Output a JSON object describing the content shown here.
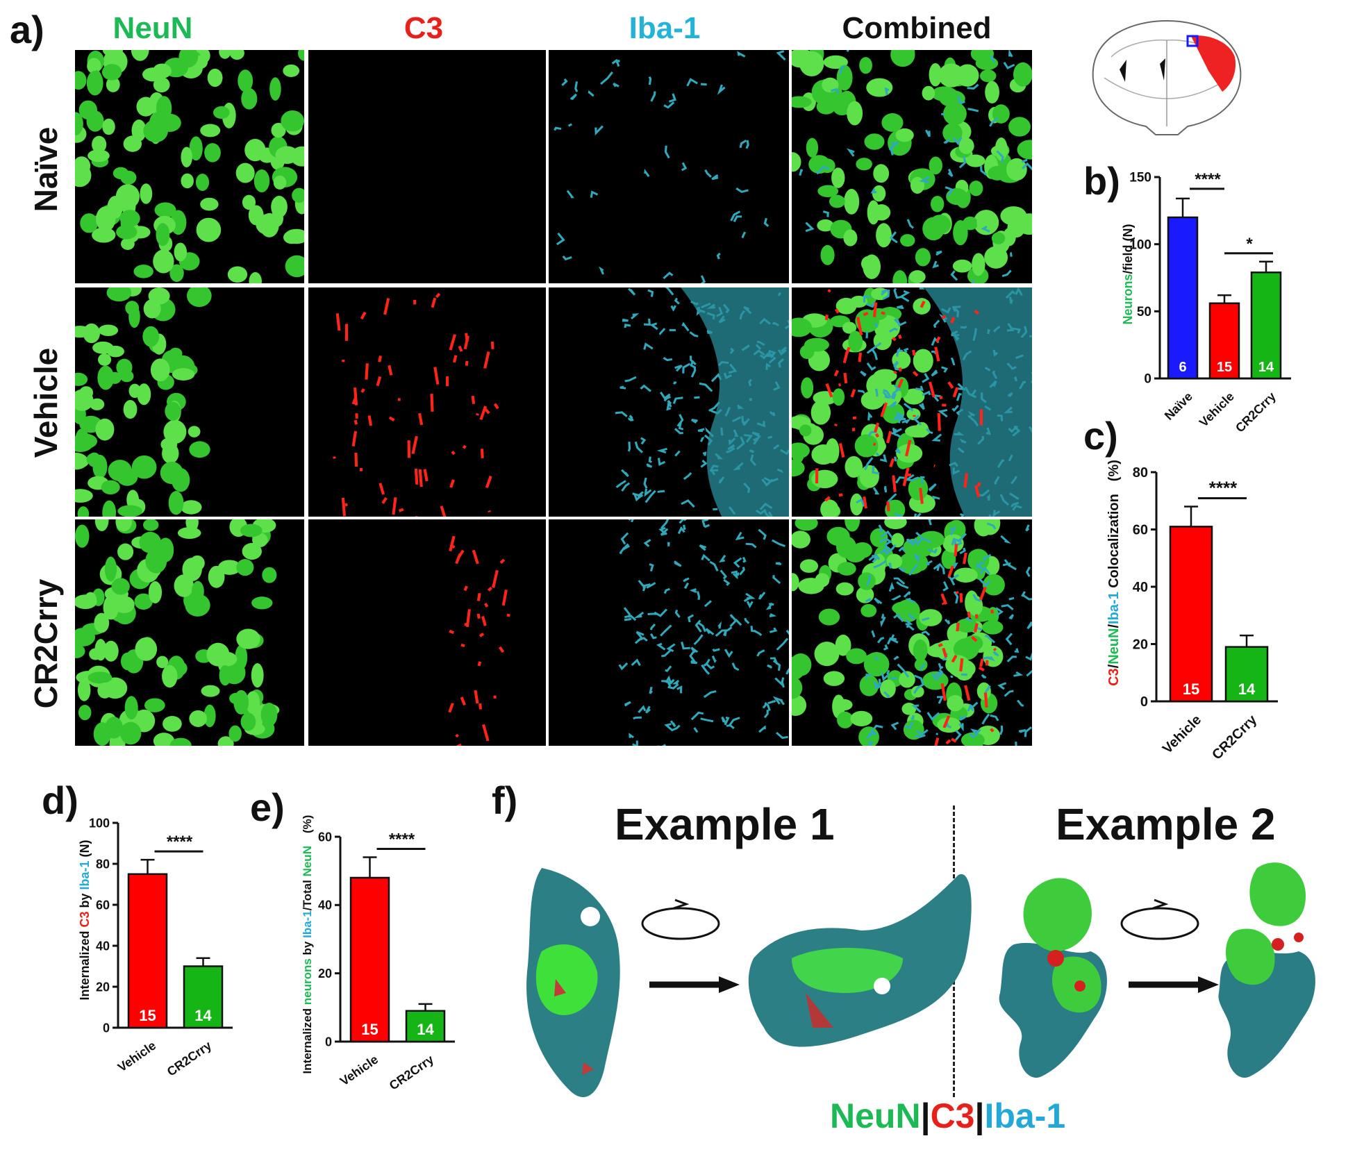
{
  "panel_letters": {
    "a": "a)",
    "b": "b)",
    "c": "c)",
    "d": "d)",
    "e": "e)",
    "f": "f)"
  },
  "column_headers": {
    "neun": {
      "text": "NeuN",
      "color": "#1db954"
    },
    "c3": {
      "text": "C3",
      "color": "#e8201a"
    },
    "iba1": {
      "text": "Iba-1",
      "color": "#23b3d8"
    },
    "combined": {
      "text": "Combined",
      "color": "#111111"
    }
  },
  "row_labels": {
    "naive": "Naïve",
    "vehicle": "Vehicle",
    "cr2crry": "CR2Crry"
  },
  "colors": {
    "neun_green": "#2ecc40",
    "c3_red": "#ff2418",
    "iba1_cyan": "#2aa7b8",
    "bar_blue": "#1a1aff",
    "bar_red": "#ff0000",
    "bar_green": "#15b515"
  },
  "chart_data": [
    {
      "panel": "b",
      "type": "bar",
      "categories": [
        "Naïve",
        "Vehicle",
        "CR2Crry"
      ],
      "values": [
        120,
        56,
        79
      ],
      "errors": [
        14,
        6,
        8
      ],
      "n_labels": [
        "6",
        "15",
        "14"
      ],
      "colors": [
        "#1a1aff",
        "#ff0000",
        "#15b515"
      ],
      "ylabel_parts": [
        {
          "text": "Neurons",
          "color": "#1db954"
        },
        {
          "text": "/field (N)",
          "color": "#111111"
        }
      ],
      "ylim": [
        0,
        150
      ],
      "yticks": [
        "0",
        "50",
        "100",
        "150"
      ],
      "significance": [
        {
          "label": "****",
          "from": 0,
          "to": 1
        },
        {
          "label": "*",
          "from": 1,
          "to": 2
        }
      ]
    },
    {
      "panel": "c",
      "type": "bar",
      "categories": [
        "Vehicle",
        "CR2Crry"
      ],
      "values": [
        61,
        19
      ],
      "errors": [
        7,
        4
      ],
      "n_labels": [
        "15",
        "14"
      ],
      "colors": [
        "#ff0000",
        "#15b515"
      ],
      "ylabel_parts": [
        {
          "text": "C3",
          "color": "#e8201a"
        },
        {
          "text": "/",
          "color": "#111111"
        },
        {
          "text": "NeuN",
          "color": "#1db954"
        },
        {
          "text": "/",
          "color": "#111111"
        },
        {
          "text": "Iba-1",
          "color": "#23a8d8"
        },
        {
          "text": " Colocalization",
          "color": "#111111"
        }
      ],
      "ylabel_unit": "(%)",
      "ylim": [
        0,
        80
      ],
      "yticks": [
        "0",
        "20",
        "40",
        "60",
        "80"
      ],
      "significance": [
        {
          "label": "****",
          "from": 0,
          "to": 1
        }
      ]
    },
    {
      "panel": "d",
      "type": "bar",
      "categories": [
        "Vehicle",
        "CR2Crry"
      ],
      "values": [
        75,
        30
      ],
      "errors": [
        7,
        4
      ],
      "n_labels": [
        "15",
        "14"
      ],
      "colors": [
        "#ff0000",
        "#15b515"
      ],
      "ylabel_parts": [
        {
          "text": "Internalized ",
          "color": "#111111"
        },
        {
          "text": "C3",
          "color": "#e8201a"
        },
        {
          "text": " by ",
          "color": "#111111"
        },
        {
          "text": "Iba-1",
          "color": "#23a8d8"
        },
        {
          "text": " (N)",
          "color": "#111111"
        }
      ],
      "ylim": [
        0,
        100
      ],
      "yticks": [
        "0",
        "20",
        "40",
        "60",
        "80",
        "100"
      ],
      "significance": [
        {
          "label": "****",
          "from": 0,
          "to": 1
        }
      ]
    },
    {
      "panel": "e",
      "type": "bar",
      "categories": [
        "Vehicle",
        "CR2Crry"
      ],
      "values": [
        48,
        9
      ],
      "errors": [
        6,
        2
      ],
      "n_labels": [
        "15",
        "14"
      ],
      "colors": [
        "#ff0000",
        "#15b515"
      ],
      "ylabel_parts": [
        {
          "text": "Internalized ",
          "color": "#111111"
        },
        {
          "text": "neurons",
          "color": "#1db954"
        },
        {
          "text": " by ",
          "color": "#111111"
        },
        {
          "text": "Iba-1",
          "color": "#23a8d8"
        },
        {
          "text": "/Total ",
          "color": "#111111"
        },
        {
          "text": "NeuN",
          "color": "#1db954"
        }
      ],
      "ylabel_unit": "(%)",
      "ylim": [
        0,
        60
      ],
      "yticks": [
        "0",
        "20",
        "40",
        "60"
      ],
      "significance": [
        {
          "label": "****",
          "from": 0,
          "to": 1
        }
      ]
    }
  ],
  "panel_f": {
    "example1": "Example 1",
    "example2": "Example 2",
    "legend": [
      {
        "text": "NeuN",
        "color": "#1db954"
      },
      {
        "text": "|",
        "color": "#111111"
      },
      {
        "text": "C3",
        "color": "#e8201a"
      },
      {
        "text": "|",
        "color": "#111111"
      },
      {
        "text": "Iba-1",
        "color": "#23a8d8"
      }
    ]
  }
}
